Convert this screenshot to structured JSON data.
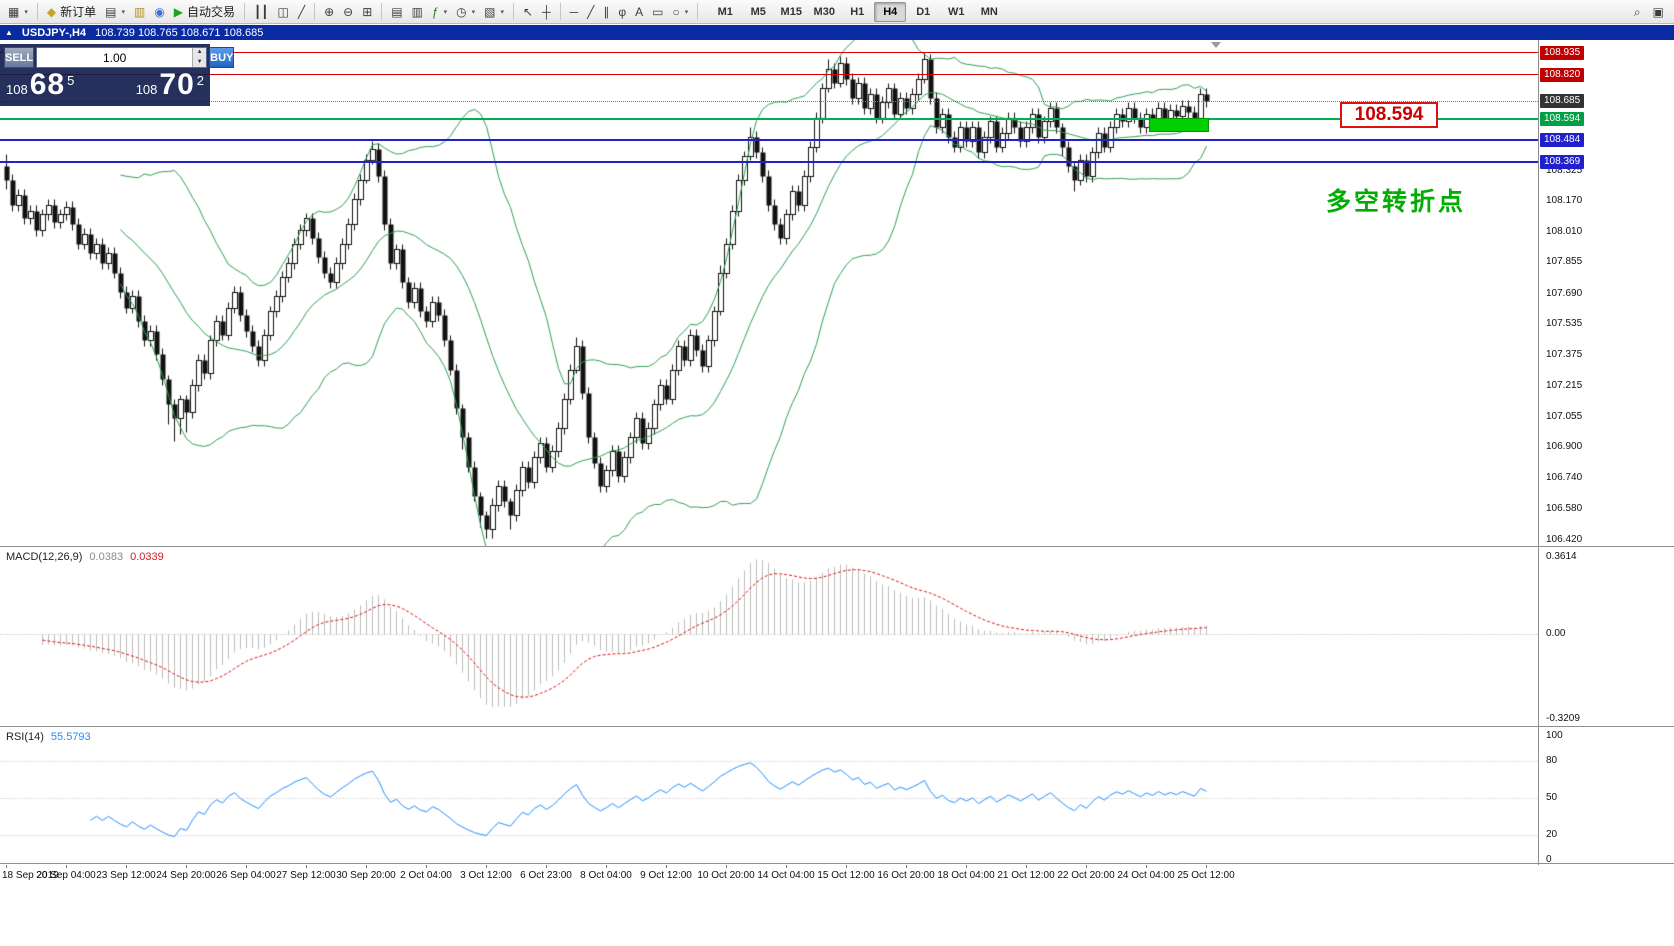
{
  "toolbar": {
    "items": [
      {
        "name": "new-chart",
        "glyph": "▦",
        "caret": true
      },
      {
        "sep": true
      },
      {
        "name": "new-order",
        "glyph": "◆",
        "label": "新订单",
        "color": "#c9a227"
      },
      {
        "name": "chart-profiles",
        "glyph": "▤",
        "caret": true
      },
      {
        "name": "data-window",
        "glyph": "▥",
        "color": "#b08f26"
      },
      {
        "name": "webinar",
        "glyph": "◉",
        "color": "#3b6fd4"
      },
      {
        "name": "autotrading",
        "glyph": "▶",
        "label": "自动交易",
        "color": "#1ba31b"
      },
      {
        "sep": true
      },
      {
        "name": "bars-mode",
        "glyph": "┃┃"
      },
      {
        "name": "candles-mode",
        "glyph": "◫"
      },
      {
        "name": "line-mode",
        "glyph": "╱"
      },
      {
        "sep": true
      },
      {
        "name": "zoom-in",
        "glyph": "⊕"
      },
      {
        "name": "zoom-out",
        "glyph": "⊖"
      },
      {
        "name": "tile-windows",
        "glyph": "⊞"
      },
      {
        "sep": true
      },
      {
        "name": "arrange-horizontal",
        "glyph": "▤"
      },
      {
        "name": "arrange-vertical",
        "glyph": "▥"
      },
      {
        "name": "indicators",
        "glyph": "ƒ",
        "caret": true,
        "color": "#1b7f2f"
      },
      {
        "name": "periods",
        "glyph": "◷",
        "caret": true
      },
      {
        "name": "templates",
        "glyph": "▧",
        "caret": true
      },
      {
        "sep": true
      },
      {
        "name": "cursor",
        "glyph": "↖"
      },
      {
        "name": "crosshair",
        "glyph": "┼"
      },
      {
        "sep": true
      },
      {
        "name": "hline-tool",
        "glyph": "─"
      },
      {
        "name": "trendline-tool",
        "glyph": "╱"
      },
      {
        "name": "channel-tool",
        "glyph": "∥"
      },
      {
        "name": "fibonacci-tool",
        "glyph": "φ"
      },
      {
        "name": "text-tool",
        "glyph": "A"
      },
      {
        "name": "label-tool",
        "glyph": "▭"
      },
      {
        "name": "shapes-tool",
        "glyph": "○",
        "caret": true
      },
      {
        "sep": true
      }
    ],
    "timeframes": [
      "M1",
      "M5",
      "M15",
      "M30",
      "H1",
      "H4",
      "D1",
      "W1",
      "MN"
    ],
    "active_timeframe": "H4",
    "right_items": [
      {
        "name": "search",
        "glyph": "⌕"
      },
      {
        "name": "community",
        "glyph": "▣"
      }
    ]
  },
  "title_bar": {
    "collapse_glyph": "▲",
    "symbol": "USDJPY-,H4"
  },
  "trade_panel": {
    "sell": "SELL",
    "buy": "BUY",
    "volume": "1.00",
    "bid": {
      "prefix": "108",
      "big": "68",
      "sup": "5"
    },
    "ask": {
      "prefix": "108",
      "big": "70",
      "sup": "2"
    }
  },
  "chart_data": [
    {
      "type": "candlestick",
      "symbol": "USDJPY-",
      "timeframe": "H4",
      "ohlc_display": "108.739 108.765 108.671 108.685",
      "current_price": 108.685,
      "ylim": [
        106.39,
        109.0
      ],
      "y_ticks": [
        108.325,
        108.17,
        108.01,
        107.855,
        107.69,
        107.535,
        107.375,
        107.215,
        107.055,
        106.9,
        106.74,
        106.58,
        106.42
      ],
      "x_labels": [
        "18 Sep 2019",
        "20 Sep 04:00",
        "23 Sep 12:00",
        "24 Sep 20:00",
        "26 Sep 04:00",
        "27 Sep 12:00",
        "30 Sep 20:00",
        "2 Oct 04:00",
        "3 Oct 12:00",
        "6 Oct 23:00",
        "8 Oct 04:00",
        "9 Oct 12:00",
        "10 Oct 20:00",
        "14 Oct 04:00",
        "15 Oct 12:00",
        "16 Oct 20:00",
        "18 Oct 04:00",
        "21 Oct 12:00",
        "22 Oct 20:00",
        "24 Oct 04:00",
        "25 Oct 12:00"
      ],
      "bars_per_label": 10,
      "first_open": 108.35,
      "open_rule": "previous_close",
      "default_wick": 0.03,
      "wick_overrides": {
        "0": [
          0.06,
          0.05
        ],
        "27": [
          0.02,
          0.1
        ],
        "28": [
          0.03,
          0.12
        ],
        "29": [
          0.02,
          0.08
        ],
        "30": [
          0.02,
          0.1
        ],
        "60": [
          0.03,
          0.02
        ],
        "61": [
          0.04,
          0.02
        ],
        "76": [
          0.02,
          0.06
        ],
        "79": [
          0.02,
          0.06
        ],
        "80": [
          0.02,
          0.05
        ],
        "81": [
          0.04,
          0.05
        ],
        "84": [
          0.02,
          0.07
        ],
        "95": [
          0.05,
          0.02
        ],
        "119": [
          0.04,
          0.02
        ],
        "124": [
          0.05,
          0.02
        ],
        "137": [
          0.05,
          0.02
        ],
        "139": [
          0.04,
          0.02
        ],
        "153": [
          0.04,
          0.02
        ],
        "176": [
          0.02,
          0.05
        ],
        "178": [
          0.02,
          0.06
        ]
      },
      "closes": [
        108.28,
        108.15,
        108.2,
        108.08,
        108.12,
        108.02,
        108.1,
        108.15,
        108.06,
        108.1,
        108.14,
        108.05,
        107.95,
        108.0,
        107.9,
        107.95,
        107.85,
        107.9,
        107.8,
        107.7,
        107.62,
        107.68,
        107.55,
        107.45,
        107.5,
        107.38,
        107.25,
        107.12,
        107.05,
        107.15,
        107.08,
        107.22,
        107.35,
        107.28,
        107.45,
        107.55,
        107.48,
        107.62,
        107.7,
        107.58,
        107.5,
        107.42,
        107.35,
        107.48,
        107.6,
        107.68,
        107.78,
        107.85,
        107.95,
        108.02,
        108.08,
        107.98,
        107.88,
        107.8,
        107.75,
        107.85,
        107.95,
        108.05,
        108.18,
        108.28,
        108.38,
        108.44,
        108.3,
        108.05,
        107.85,
        107.92,
        107.75,
        107.65,
        107.72,
        107.6,
        107.55,
        107.65,
        107.58,
        107.45,
        107.3,
        107.1,
        106.95,
        106.8,
        106.65,
        106.55,
        106.48,
        106.6,
        106.7,
        106.62,
        106.55,
        106.68,
        106.8,
        106.72,
        106.85,
        106.92,
        106.8,
        106.88,
        107.0,
        107.15,
        107.3,
        107.42,
        107.18,
        106.95,
        106.82,
        106.7,
        106.78,
        106.88,
        106.75,
        106.85,
        106.95,
        107.05,
        106.92,
        107.0,
        107.12,
        107.22,
        107.15,
        107.3,
        107.42,
        107.35,
        107.48,
        107.4,
        107.32,
        107.45,
        107.6,
        107.8,
        107.95,
        108.12,
        108.28,
        108.4,
        108.5,
        108.42,
        108.3,
        108.15,
        108.05,
        107.98,
        108.1,
        108.22,
        108.15,
        108.3,
        108.45,
        108.6,
        108.75,
        108.85,
        108.78,
        108.88,
        108.8,
        108.7,
        108.78,
        108.65,
        108.72,
        108.6,
        108.68,
        108.75,
        108.62,
        108.7,
        108.65,
        108.72,
        108.8,
        108.9,
        108.7,
        108.55,
        108.62,
        108.5,
        108.45,
        108.55,
        108.48,
        108.55,
        108.42,
        108.5,
        108.58,
        108.45,
        108.52,
        108.6,
        108.55,
        108.48,
        108.55,
        108.62,
        108.5,
        108.58,
        108.65,
        108.55,
        108.45,
        108.35,
        108.28,
        108.38,
        108.3,
        108.42,
        108.52,
        108.45,
        108.55,
        108.62,
        108.58,
        108.65,
        108.6,
        108.55,
        108.62,
        108.58,
        108.65,
        108.6,
        108.64,
        108.61,
        108.66,
        108.63,
        108.6,
        108.72,
        108.685
      ],
      "bollinger": {
        "period": 20,
        "deviation": 2,
        "color": "#2f9e52"
      },
      "hlines": [
        {
          "price": 108.935,
          "color": "#d20000",
          "width": 1,
          "label_bg": "#c00000"
        },
        {
          "price": 108.82,
          "color": "#d20000",
          "width": 1,
          "label_bg": "#c00000"
        },
        {
          "price": 108.594,
          "color": "#00b050",
          "width": 2,
          "label_bg": "#00a044"
        },
        {
          "price": 108.484,
          "color": "#2121cc",
          "width": 2,
          "label_bg": "#2121cc"
        },
        {
          "price": 108.369,
          "color": "#2121cc",
          "width": 2,
          "label_bg": "#2121cc"
        }
      ],
      "current_price_label_bg": "#333333",
      "green_box": {
        "from_bar": 191,
        "to_bar": 200,
        "price_top": 108.6,
        "price_bottom": 108.525
      },
      "callout": {
        "text": "108.594"
      },
      "note": {
        "text": "多空转折点"
      }
    },
    {
      "type": "bar",
      "label": "MACD(12,26,9)",
      "value_main": "0.0383",
      "value_signal": "0.0339",
      "params": {
        "fast": 12,
        "slow": 26,
        "signal_period": 9
      },
      "histogram_color": "#bdbdbd",
      "signal_color": "#e01010",
      "y_ticks": [
        {
          "v": 0.3614,
          "t": "0.3614"
        },
        {
          "v": 0,
          "t": "0.00"
        },
        {
          "v": -0.3209,
          "t": "-0.3209"
        }
      ],
      "source": "derived from candlestick closes"
    },
    {
      "type": "line",
      "label": "RSI(14)",
      "value": "55.5793",
      "period": 14,
      "line_color": "#1f8fff",
      "levels": [
        80,
        50,
        20
      ],
      "y_ticks": [
        100,
        80,
        50,
        20,
        0
      ],
      "source": "derived from candlestick closes"
    }
  ]
}
